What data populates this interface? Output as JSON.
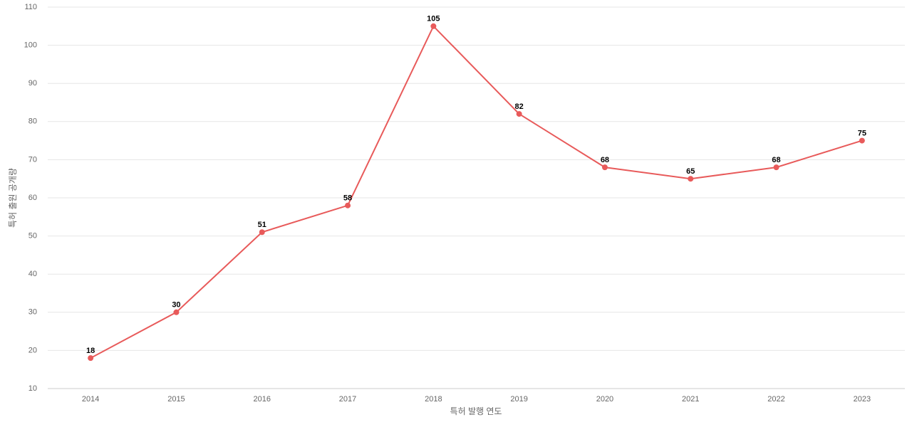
{
  "chart_data": {
    "type": "line",
    "x_label": "특허 발행 연도",
    "y_label": "특허 출원 공개량",
    "categories": [
      "2014",
      "2015",
      "2016",
      "2017",
      "2018",
      "2019",
      "2020",
      "2021",
      "2022",
      "2023"
    ],
    "series": [
      {
        "name": "특허 출원 공개량",
        "color": "#e85a5a",
        "values": [
          18,
          30,
          51,
          58,
          105,
          82,
          68,
          65,
          68,
          75
        ]
      }
    ],
    "ylim": [
      10,
      110
    ],
    "yticks": [
      10,
      20,
      30,
      40,
      50,
      60,
      70,
      80,
      90,
      100,
      110
    ],
    "grid": true
  }
}
